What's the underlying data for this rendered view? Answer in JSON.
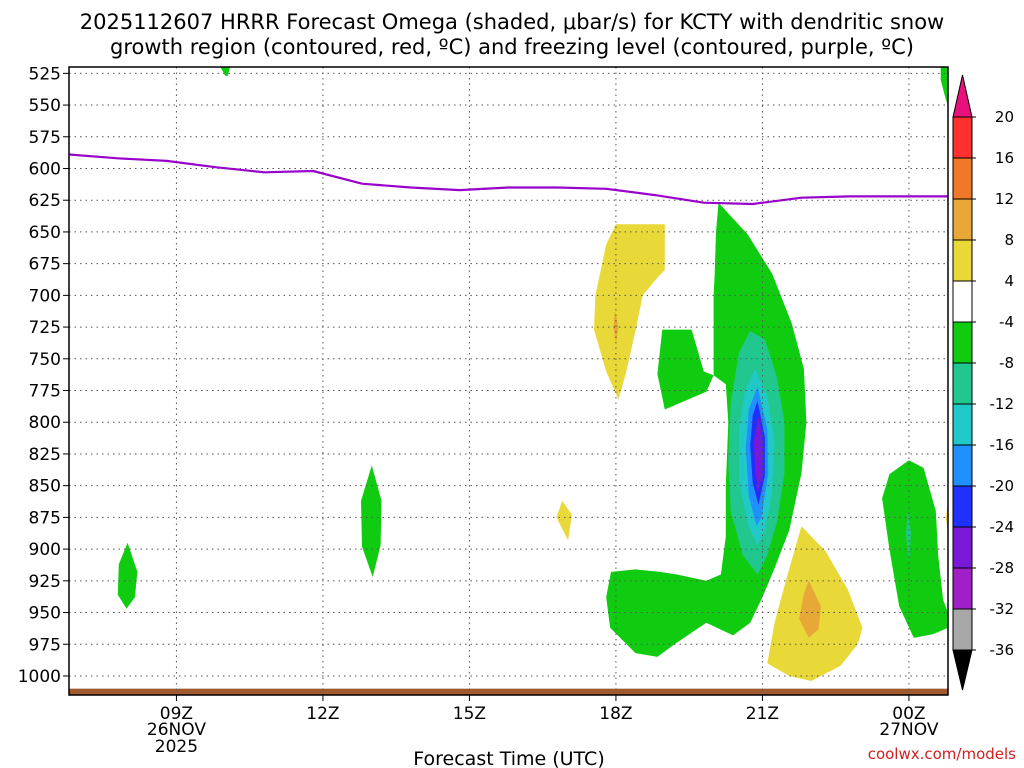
{
  "chart_data": {
    "type": "heatmap",
    "title_line1": "2025112607 HRRR Forecast Omega (shaded, μbar/s) for KCTY with dendritic snow",
    "title_line2": "growth region (contoured, red, ºC) and freezing level (contoured, purple, ºC)",
    "xlabel": "Forecast Time (UTC)",
    "watermark": "coolwx.com/models",
    "x_range_hours": [
      6.8,
      24.8
    ],
    "y_range_mb": [
      1015,
      520
    ],
    "y_ticks": [
      525,
      550,
      575,
      600,
      625,
      650,
      675,
      700,
      725,
      750,
      775,
      800,
      825,
      850,
      875,
      900,
      925,
      950,
      975,
      1000
    ],
    "x_ticks": [
      {
        "hour": 9,
        "label": "09Z",
        "date": "26NOV",
        "year": "2025"
      },
      {
        "hour": 12,
        "label": "12Z",
        "date": "",
        "year": ""
      },
      {
        "hour": 15,
        "label": "15Z",
        "date": "",
        "year": ""
      },
      {
        "hour": 18,
        "label": "18Z",
        "date": "",
        "year": ""
      },
      {
        "hour": 21,
        "label": "21Z",
        "date": "",
        "year": ""
      },
      {
        "hour": 24,
        "label": "00Z",
        "date": "27NOV",
        "year": ""
      }
    ],
    "freezing_level": {
      "color": "#9900cc",
      "points": [
        [
          6.8,
          589
        ],
        [
          7.8,
          592
        ],
        [
          8.8,
          594
        ],
        [
          9.8,
          599
        ],
        [
          10.8,
          603
        ],
        [
          11.8,
          602
        ],
        [
          12.8,
          612
        ],
        [
          13.8,
          615
        ],
        [
          14.8,
          617
        ],
        [
          15.8,
          615
        ],
        [
          16.8,
          615
        ],
        [
          17.8,
          616
        ],
        [
          18.8,
          621
        ],
        [
          19.8,
          627
        ],
        [
          20.8,
          628
        ],
        [
          21.8,
          623
        ],
        [
          22.8,
          622
        ],
        [
          23.8,
          622
        ],
        [
          24.8,
          622
        ]
      ]
    },
    "colorbar": {
      "labels": [
        "20",
        "16",
        "12",
        "8",
        "4",
        "-4",
        "-8",
        "-12",
        "-16",
        "-20",
        "-24",
        "-28",
        "-32",
        "-36"
      ],
      "bins": [
        {
          "range": "16 to 20",
          "color": "#ff3030"
        },
        {
          "range": "12 to 16",
          "color": "#f07828"
        },
        {
          "range": "8 to 12",
          "color": "#e8a838"
        },
        {
          "range": "4 to 8",
          "color": "#e8d838"
        },
        {
          "range": "-4 to 4",
          "color": "#ffffff"
        },
        {
          "range": "-8 to -4",
          "color": "#10cc10"
        },
        {
          "range": "-12 to -8",
          "color": "#20c890"
        },
        {
          "range": "-16 to -12",
          "color": "#20c8c8"
        },
        {
          "range": "-20 to -16",
          "color": "#2090ff"
        },
        {
          "range": "-24 to -20",
          "color": "#2030ff"
        },
        {
          "range": "-28 to -24",
          "color": "#7a18d8"
        },
        {
          "range": "-32 to -28",
          "color": "#a020c8"
        },
        {
          "range": "-36 to -32",
          "color": "#a8a8a8"
        }
      ],
      "top_arrow_color": "#e8107a",
      "bottom_arrow_color": "#000000"
    },
    "regions": [
      {
        "name": "green-top-left",
        "value": -6,
        "points": [
          [
            9.9,
            520
          ],
          [
            10.1,
            520
          ],
          [
            10.05,
            527
          ],
          [
            10.0,
            527
          ]
        ]
      },
      {
        "name": "green-top-right",
        "value": -6,
        "points": [
          [
            24.65,
            520
          ],
          [
            24.8,
            520
          ],
          [
            24.8,
            550
          ],
          [
            24.75,
            545
          ],
          [
            24.65,
            530
          ]
        ]
      },
      {
        "name": "green-0830",
        "value": -6,
        "points": [
          [
            8.0,
            895
          ],
          [
            8.2,
            918
          ],
          [
            8.15,
            938
          ],
          [
            7.98,
            947
          ],
          [
            7.8,
            936
          ],
          [
            7.82,
            912
          ]
        ]
      },
      {
        "name": "green-1300",
        "value": -6,
        "points": [
          [
            13.0,
            834
          ],
          [
            13.2,
            862
          ],
          [
            13.18,
            897
          ],
          [
            13.02,
            922
          ],
          [
            12.8,
            898
          ],
          [
            12.78,
            862
          ]
        ]
      },
      {
        "name": "yellow-1700",
        "value": 6,
        "points": [
          [
            16.9,
            862
          ],
          [
            17.1,
            873
          ],
          [
            17.02,
            893
          ],
          [
            16.78,
            875
          ]
        ]
      },
      {
        "name": "yellow-1800",
        "value": 6,
        "points": [
          [
            18.0,
            644
          ],
          [
            19.0,
            644
          ],
          [
            19.0,
            680
          ],
          [
            18.85,
            686
          ],
          [
            18.55,
            700
          ],
          [
            18.4,
            728
          ],
          [
            18.2,
            762
          ],
          [
            18.05,
            782
          ],
          [
            17.8,
            760
          ],
          [
            17.55,
            727
          ],
          [
            17.58,
            700
          ],
          [
            17.8,
            660
          ]
        ]
      },
      {
        "name": "orange-1800",
        "value": 10,
        "points": [
          [
            17.98,
            712
          ],
          [
            18.05,
            725
          ],
          [
            18.0,
            738
          ],
          [
            17.95,
            725
          ]
        ]
      },
      {
        "name": "green-main",
        "value": -6,
        "points": [
          [
            20.1,
            627
          ],
          [
            20.7,
            652
          ],
          [
            21.2,
            683
          ],
          [
            21.6,
            722
          ],
          [
            21.85,
            758
          ],
          [
            21.9,
            800
          ],
          [
            21.8,
            840
          ],
          [
            21.55,
            885
          ],
          [
            21.25,
            915
          ],
          [
            21.0,
            938
          ],
          [
            20.75,
            958
          ],
          [
            20.4,
            968
          ],
          [
            19.85,
            958
          ],
          [
            19.7,
            962
          ],
          [
            19.2,
            975
          ],
          [
            18.85,
            985
          ],
          [
            18.4,
            982
          ],
          [
            17.88,
            962
          ],
          [
            17.8,
            938
          ],
          [
            17.9,
            918
          ],
          [
            18.4,
            916
          ],
          [
            18.9,
            918
          ],
          [
            19.25,
            920
          ],
          [
            19.85,
            925
          ],
          [
            20.15,
            920
          ],
          [
            20.25,
            890
          ],
          [
            20.25,
            850
          ],
          [
            20.3,
            800
          ],
          [
            20.25,
            770
          ],
          [
            20.0,
            763
          ],
          [
            19.85,
            776
          ],
          [
            19.0,
            790
          ],
          [
            18.85,
            762
          ],
          [
            18.95,
            727
          ],
          [
            19.15,
            727
          ],
          [
            19.55,
            727
          ],
          [
            19.8,
            760
          ],
          [
            20.0,
            763
          ],
          [
            20.0,
            722
          ],
          [
            20.0,
            700
          ],
          [
            20.02,
            685
          ],
          [
            20.05,
            650
          ]
        ]
      },
      {
        "name": "teal-core",
        "value": -10,
        "points": [
          [
            20.75,
            728
          ],
          [
            21.05,
            735
          ],
          [
            21.3,
            765
          ],
          [
            21.45,
            800
          ],
          [
            21.45,
            840
          ],
          [
            21.3,
            878
          ],
          [
            21.1,
            905
          ],
          [
            20.9,
            920
          ],
          [
            20.6,
            905
          ],
          [
            20.35,
            870
          ],
          [
            20.3,
            830
          ],
          [
            20.35,
            785
          ],
          [
            20.52,
            745
          ]
        ]
      },
      {
        "name": "cyan-core",
        "value": -14,
        "points": [
          [
            20.85,
            758
          ],
          [
            21.1,
            780
          ],
          [
            21.25,
            815
          ],
          [
            21.2,
            855
          ],
          [
            21.05,
            885
          ],
          [
            20.9,
            897
          ],
          [
            20.7,
            880
          ],
          [
            20.52,
            845
          ],
          [
            20.52,
            805
          ],
          [
            20.65,
            775
          ]
        ]
      },
      {
        "name": "blue-core",
        "value": -18,
        "points": [
          [
            20.9,
            772
          ],
          [
            21.1,
            805
          ],
          [
            21.12,
            840
          ],
          [
            20.98,
            875
          ],
          [
            20.88,
            882
          ],
          [
            20.72,
            858
          ],
          [
            20.66,
            820
          ],
          [
            20.72,
            790
          ]
        ]
      },
      {
        "name": "darkblue-core",
        "value": -22,
        "points": [
          [
            20.9,
            783
          ],
          [
            21.05,
            812
          ],
          [
            21.05,
            842
          ],
          [
            20.92,
            865
          ],
          [
            20.8,
            848
          ],
          [
            20.75,
            818
          ],
          [
            20.8,
            795
          ]
        ]
      },
      {
        "name": "purple-core",
        "value": -26,
        "points": [
          [
            20.92,
            795
          ],
          [
            21.0,
            815
          ],
          [
            21.0,
            840
          ],
          [
            20.92,
            855
          ],
          [
            20.85,
            838
          ],
          [
            20.83,
            815
          ]
        ]
      },
      {
        "name": "yellow-2230",
        "value": 6,
        "points": [
          [
            21.8,
            882
          ],
          [
            22.3,
            902
          ],
          [
            22.75,
            932
          ],
          [
            23.05,
            962
          ],
          [
            22.95,
            975
          ],
          [
            22.6,
            992
          ],
          [
            22.0,
            1004
          ],
          [
            21.55,
            1000
          ],
          [
            21.1,
            990
          ],
          [
            21.25,
            958
          ],
          [
            21.5,
            922
          ]
        ]
      },
      {
        "name": "orange-2230",
        "value": 10,
        "points": [
          [
            21.95,
            925
          ],
          [
            22.2,
            945
          ],
          [
            22.15,
            963
          ],
          [
            21.95,
            970
          ],
          [
            21.75,
            955
          ],
          [
            21.85,
            935
          ]
        ]
      },
      {
        "name": "green-2400",
        "value": -6,
        "points": [
          [
            23.6,
            841
          ],
          [
            24.0,
            830
          ],
          [
            24.3,
            836
          ],
          [
            24.55,
            870
          ],
          [
            24.6,
            905
          ],
          [
            24.7,
            940
          ],
          [
            24.8,
            950
          ],
          [
            24.8,
            962
          ],
          [
            24.5,
            967
          ],
          [
            24.1,
            970
          ],
          [
            23.8,
            945
          ],
          [
            23.6,
            900
          ],
          [
            23.45,
            860
          ]
        ]
      },
      {
        "name": "teal-2400",
        "value": -10,
        "points": [
          [
            23.98,
            870
          ],
          [
            24.04,
            887
          ],
          [
            24.0,
            910
          ],
          [
            23.94,
            888
          ]
        ]
      },
      {
        "name": "yellow-right-edge",
        "value": 6,
        "points": [
          [
            24.8,
            860
          ],
          [
            24.8,
            888
          ],
          [
            24.76,
            876
          ]
        ]
      }
    ],
    "surface_band": {
      "color": "#a05a30",
      "top_mb": 1010,
      "bottom_mb": 1015
    }
  }
}
